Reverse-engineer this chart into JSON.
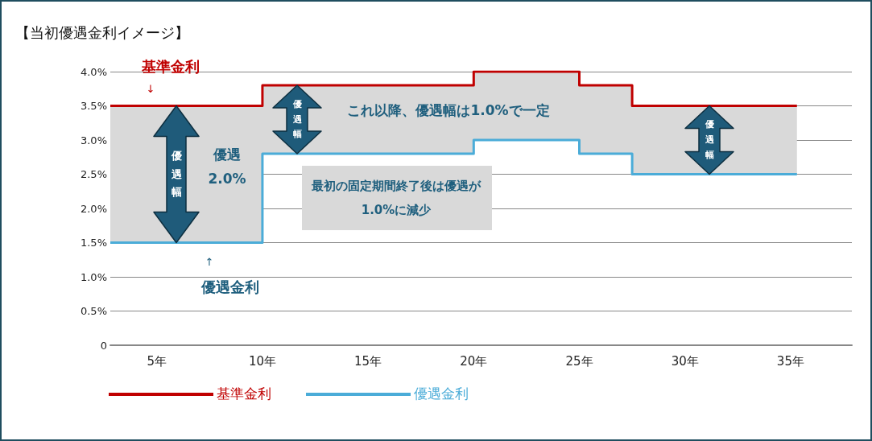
{
  "chart_data": {
    "type": "step",
    "title": "【当初優遇金利イメージ】",
    "xlim": [
      2.8,
      37.9
    ],
    "xticks": [
      {
        "value": 5,
        "label": "5年"
      },
      {
        "value": 10,
        "label": "10年"
      },
      {
        "value": 15,
        "label": "15年"
      },
      {
        "value": 20,
        "label": "20年"
      },
      {
        "value": 25,
        "label": "25年"
      },
      {
        "value": 30,
        "label": "30年"
      },
      {
        "value": 35,
        "label": "35年"
      }
    ],
    "ylim": [
      0,
      4.0
    ],
    "yticks": [
      {
        "value": 0,
        "label": "0"
      },
      {
        "value": 0.5,
        "label": "0.5%"
      },
      {
        "value": 1.0,
        "label": "1.0%"
      },
      {
        "value": 1.5,
        "label": "1.5%"
      },
      {
        "value": 2.0,
        "label": "2.0%"
      },
      {
        "value": 2.5,
        "label": "2.5%"
      },
      {
        "value": 3.0,
        "label": "3.0%"
      },
      {
        "value": 3.5,
        "label": "3.5%"
      },
      {
        "value": 4.0,
        "label": "4.0%"
      }
    ],
    "grid": "y",
    "legend": "bottom left",
    "series": [
      {
        "name": "基準金利",
        "color": "#c00000",
        "x": [
          2.8,
          10,
          20,
          25,
          27.5,
          35.3
        ],
        "values": [
          3.5,
          3.8,
          4.0,
          3.8,
          3.5,
          3.5
        ],
        "lower": [
          1.5,
          2.8,
          3.0,
          2.8,
          2.5,
          2.5
        ],
        "upper": [
          3.5,
          3.8,
          4.0,
          3.8,
          3.5,
          3.5
        ]
      },
      {
        "name": "優遇金利",
        "color": "#4bacd8",
        "x": [
          2.8,
          10,
          20,
          25,
          27.5,
          35.3
        ],
        "values": [
          1.5,
          2.8,
          3.0,
          2.8,
          2.5,
          2.5
        ]
      }
    ],
    "annotations": [
      "基準金利",
      "↓",
      "優遇\n2.0%",
      "これ以降、優遇幅は1.0%で一定",
      "最初の固定期間終了後は優遇が\n1.0%に減少",
      "↑",
      "優遇金利",
      "優遇幅",
      "優遇幅",
      "優遇幅"
    ]
  }
}
